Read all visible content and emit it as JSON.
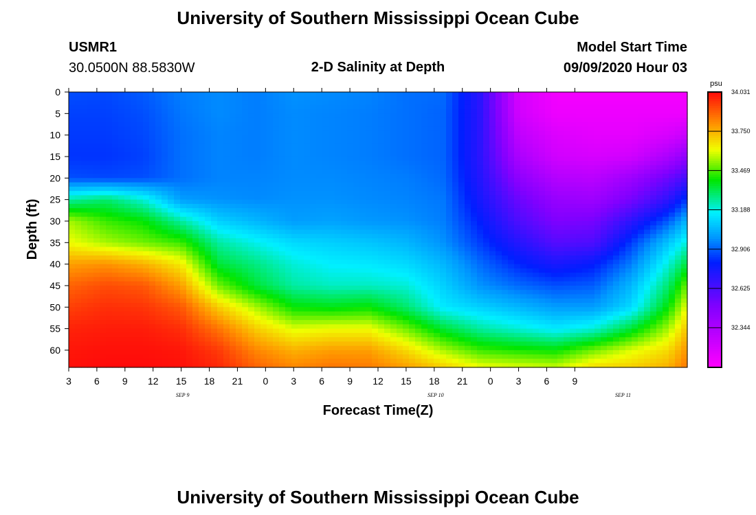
{
  "header": {
    "title": "University of Southern Mississippi Ocean Cube",
    "station": "USMR1",
    "coords": "30.0500N 88.5830W",
    "model_label": "Model Start Time",
    "model_time": "09/09/2020 Hour 03",
    "footer_title": "University of Southern Mississippi Ocean Cube"
  },
  "chart_data": {
    "type": "heatmap",
    "title": "2-D Salinity at Depth",
    "xlabel": "Forecast Time(Z)",
    "ylabel": "Depth (ft)",
    "x_hours": [
      0,
      66
    ],
    "x_ticks": [
      {
        "hour": 0,
        "label": "3"
      },
      {
        "hour": 3,
        "label": "6"
      },
      {
        "hour": 6,
        "label": "9"
      },
      {
        "hour": 9,
        "label": "12"
      },
      {
        "hour": 12,
        "label": "15"
      },
      {
        "hour": 15,
        "label": "18"
      },
      {
        "hour": 18,
        "label": "21"
      },
      {
        "hour": 21,
        "label": "0"
      },
      {
        "hour": 24,
        "label": "3"
      },
      {
        "hour": 27,
        "label": "6"
      },
      {
        "hour": 30,
        "label": "9"
      },
      {
        "hour": 33,
        "label": "12"
      },
      {
        "hour": 36,
        "label": "15"
      },
      {
        "hour": 39,
        "label": "18"
      },
      {
        "hour": 42,
        "label": "21"
      },
      {
        "hour": 45,
        "label": "0"
      },
      {
        "hour": 48,
        "label": "3"
      },
      {
        "hour": 51,
        "label": "6"
      },
      {
        "hour": 54,
        "label": "9"
      }
    ],
    "date_labels": [
      {
        "hour": 12,
        "label": "SEP 9"
      },
      {
        "hour": 39,
        "label": "SEP 10"
      },
      {
        "hour": 59,
        "label": "SEP 11"
      }
    ],
    "ylim": [
      0,
      64
    ],
    "y_ticks": [
      0,
      5,
      10,
      15,
      20,
      25,
      30,
      35,
      40,
      45,
      50,
      55,
      60
    ],
    "colorbar": {
      "unit": "psu",
      "min": 32.06,
      "max": 34.031,
      "ticks": [
        "34.031",
        "33.750",
        "33.469",
        "33.188",
        "32.906",
        "32.625",
        "32.344"
      ]
    },
    "columns_hour": [
      0,
      4,
      8,
      12,
      16,
      20,
      24,
      28,
      32,
      36,
      40,
      44,
      48,
      52,
      56,
      60,
      64,
      66
    ],
    "rows_depth": [
      0,
      5,
      10,
      15,
      20,
      25,
      30,
      35,
      40,
      45,
      50,
      55,
      60,
      64
    ],
    "values": [
      [
        32.88,
        32.87,
        32.9,
        32.95,
        32.97,
        32.95,
        32.98,
        32.97,
        32.96,
        32.93,
        32.92,
        32.7,
        32.2,
        32.1,
        32.1,
        32.1,
        32.1,
        32.1
      ],
      [
        32.86,
        32.86,
        32.88,
        32.94,
        32.97,
        32.95,
        32.97,
        32.96,
        32.95,
        32.93,
        32.91,
        32.7,
        32.22,
        32.12,
        32.12,
        32.12,
        32.12,
        32.12
      ],
      [
        32.85,
        32.85,
        32.87,
        32.93,
        32.96,
        32.95,
        32.97,
        32.96,
        32.95,
        32.93,
        32.91,
        32.7,
        32.28,
        32.18,
        32.15,
        32.15,
        32.2,
        32.25
      ],
      [
        32.84,
        32.84,
        32.86,
        32.93,
        32.96,
        32.95,
        32.97,
        32.96,
        32.95,
        32.93,
        32.91,
        32.7,
        32.35,
        32.22,
        32.2,
        32.22,
        32.35,
        32.45
      ],
      [
        32.88,
        32.87,
        32.88,
        32.93,
        32.96,
        32.96,
        32.97,
        32.97,
        32.96,
        32.95,
        32.92,
        32.72,
        32.45,
        32.32,
        32.3,
        32.4,
        32.55,
        32.65
      ],
      [
        33.25,
        33.3,
        33.2,
        33.0,
        32.98,
        32.97,
        32.98,
        32.98,
        32.97,
        32.96,
        32.94,
        32.75,
        32.55,
        32.42,
        32.4,
        32.52,
        32.7,
        32.85
      ],
      [
        33.55,
        33.45,
        33.4,
        33.25,
        33.1,
        33.05,
        33.0,
        33.01,
        32.99,
        32.98,
        32.95,
        32.8,
        32.62,
        32.5,
        32.52,
        32.7,
        32.9,
        33.05
      ],
      [
        33.62,
        33.55,
        33.5,
        33.45,
        33.25,
        33.18,
        33.12,
        33.1,
        33.08,
        33.05,
        32.98,
        32.85,
        32.72,
        32.6,
        32.62,
        32.85,
        33.08,
        33.2
      ],
      [
        33.78,
        33.8,
        33.75,
        33.65,
        33.35,
        33.28,
        33.2,
        33.16,
        33.15,
        33.12,
        33.05,
        32.92,
        32.82,
        32.75,
        32.8,
        32.95,
        33.2,
        33.35
      ],
      [
        33.88,
        33.92,
        33.9,
        33.78,
        33.5,
        33.35,
        33.25,
        33.22,
        33.22,
        33.2,
        33.1,
        32.98,
        32.92,
        32.88,
        32.9,
        33.05,
        33.3,
        33.5
      ],
      [
        33.94,
        33.97,
        33.96,
        33.9,
        33.7,
        33.55,
        33.4,
        33.38,
        33.4,
        33.3,
        33.15,
        33.1,
        33.05,
        33.0,
        33.0,
        33.12,
        33.4,
        33.62
      ],
      [
        33.99,
        34.0,
        34.0,
        33.97,
        33.85,
        33.7,
        33.6,
        33.62,
        33.62,
        33.5,
        33.35,
        33.25,
        33.2,
        33.15,
        33.2,
        33.35,
        33.55,
        33.72
      ],
      [
        34.01,
        34.02,
        34.02,
        34.01,
        33.95,
        33.82,
        33.75,
        33.78,
        33.78,
        33.68,
        33.55,
        33.45,
        33.42,
        33.4,
        33.5,
        33.6,
        33.68,
        33.8
      ],
      [
        34.02,
        34.03,
        34.03,
        34.02,
        33.98,
        33.88,
        33.82,
        33.85,
        33.84,
        33.78,
        33.7,
        33.62,
        33.6,
        33.58,
        33.68,
        33.7,
        33.75,
        33.85
      ]
    ]
  }
}
